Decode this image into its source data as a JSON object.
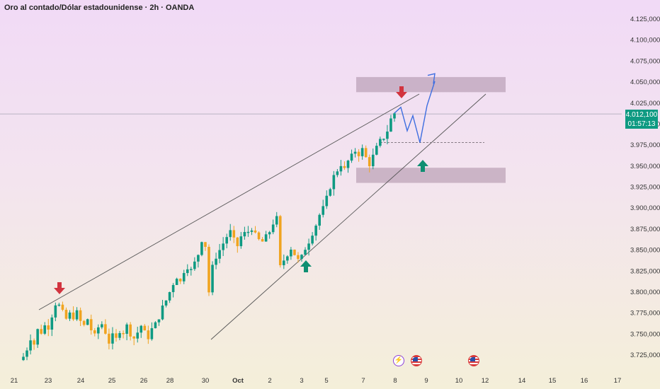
{
  "header": {
    "title": "Oro al contado/Dólar estadounidense · 2h · OANDA"
  },
  "price_tag": {
    "price": "4.012,100",
    "countdown": "01:57:13",
    "color": "#0e9a82"
  },
  "events": [
    {
      "name": "flash-icon",
      "date": "Oct 8"
    },
    {
      "name": "us-flag-icon",
      "date": "Oct 8"
    },
    {
      "name": "us-flag-icon",
      "date": "Oct 10"
    }
  ],
  "colors": {
    "up": "#0e9a82",
    "down": "#f0a420",
    "arrow_down": "#d2343f",
    "arrow_up": "#0e8f72",
    "projection": "#3e6ee0",
    "zone": "#a98da4"
  },
  "chart_data": {
    "type": "candlestick",
    "title": "Oro al contado/Dólar estadounidense · 2h · OANDA",
    "xlabel": "",
    "ylabel": "",
    "x_ticks": [
      "21",
      "23",
      "24",
      "25",
      "26",
      "28",
      "30",
      "Oct",
      "2",
      "3",
      "5",
      "7",
      "8",
      "9",
      "10",
      "12",
      "14",
      "15",
      "16",
      "17"
    ],
    "y_ticks": [
      "4.125,000",
      "4.100,000",
      "4.075,000",
      "4.050,000",
      "4.025,000",
      "4.000,000",
      "3.975,000",
      "3.950,000",
      "3.925,000",
      "3.900,000",
      "3.875,000",
      "3.850,000",
      "3.825,000",
      "3.800,000",
      "3.775,000",
      "3.750,000",
      "3.725,000"
    ],
    "ylim": [
      3712,
      4135
    ],
    "last_price": 4012.1,
    "trend_path": [
      3723,
      3732,
      3745,
      3738,
      3755,
      3752,
      3760,
      3758,
      3772,
      3786,
      3784,
      3776,
      3768,
      3774,
      3770,
      3776,
      3765,
      3760,
      3768,
      3755,
      3748,
      3758,
      3762,
      3752,
      3740,
      3748,
      3744,
      3754,
      3752,
      3760,
      3750,
      3745,
      3752,
      3760,
      3752,
      3746,
      3756,
      3762,
      3770,
      3782,
      3790,
      3800,
      3810,
      3818,
      3812,
      3825,
      3830,
      3826,
      3835,
      3845,
      3862,
      3855,
      3800,
      3830,
      3842,
      3850,
      3858,
      3866,
      3872,
      3862,
      3855,
      3866,
      3870,
      3872,
      3876,
      3868,
      3862,
      3860,
      3866,
      3872,
      3882,
      3888,
      3830,
      3838,
      3845,
      3852,
      3845,
      3838,
      3842,
      3852,
      3860,
      3870,
      3880,
      3892,
      3900,
      3912,
      3925,
      3938,
      3945,
      3952,
      3946,
      3956,
      3962,
      3968,
      3964,
      3970,
      3960,
      3952,
      3962,
      3972,
      3980,
      3984,
      3992,
      4006,
      4013
    ],
    "support_zone": [
      3930,
      3948
    ],
    "resistance_zone": [
      4038,
      4056
    ],
    "dashed_level": 3978
  }
}
